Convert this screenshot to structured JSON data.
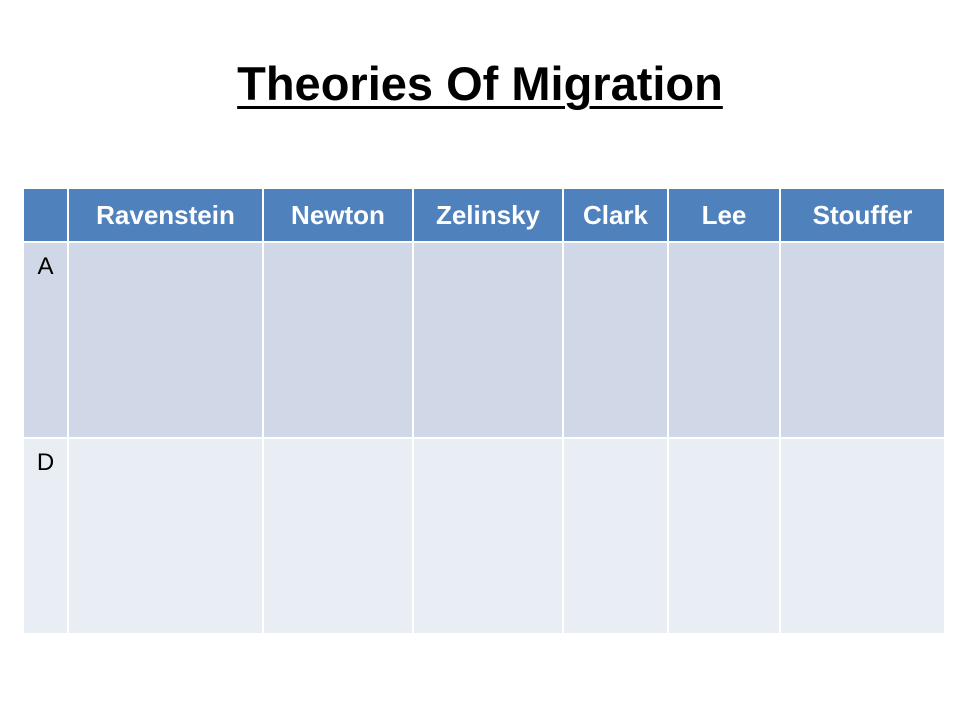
{
  "slide": {
    "title": "Theories Of Migration"
  },
  "table": {
    "corner": "",
    "columns": [
      "Ravenstein",
      "Newton",
      "Zelinsky",
      "Clark",
      "Lee",
      "Stouffer"
    ],
    "rows": [
      {
        "label": "A",
        "cells": [
          "",
          "",
          "",
          "",
          "",
          ""
        ]
      },
      {
        "label": "D",
        "cells": [
          "",
          "",
          "",
          "",
          "",
          ""
        ]
      }
    ]
  },
  "colors": {
    "header_fill": "#4f81bd",
    "row_a_fill": "#d0d8e8",
    "row_d_fill": "#e9edf4",
    "header_text": "#ffffff",
    "title_text": "#000000"
  }
}
